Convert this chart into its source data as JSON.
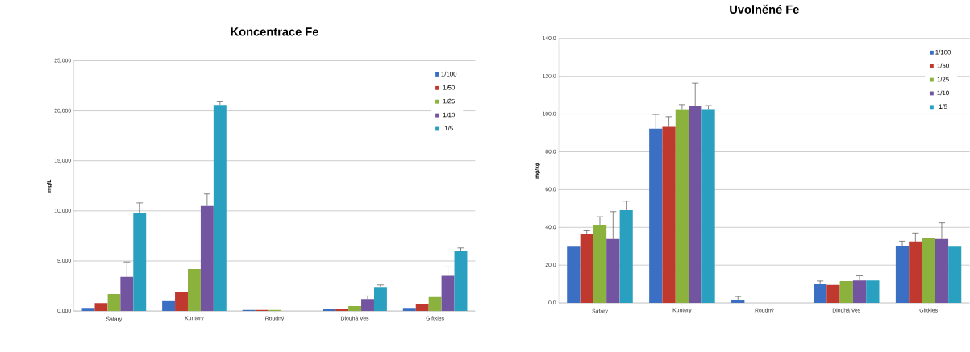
{
  "chart_data": [
    {
      "type": "bar",
      "title": "Koncentrace Fe",
      "ylabel": "mg/L",
      "categories": [
        "Šafary",
        "Kuntery",
        "Roudný",
        "Dlouhá Ves",
        "Giftkies"
      ],
      "series": [
        {
          "name": "1/100",
          "color": "#3a6fc4",
          "values": [
            0.3,
            1.0,
            0.1,
            0.2,
            0.3
          ]
        },
        {
          "name": "1/50",
          "color": "#c0392f",
          "values": [
            0.8,
            1.9,
            0.1,
            0.2,
            0.7
          ]
        },
        {
          "name": "1/25",
          "color": "#8ab23c",
          "values": [
            1.7,
            4.2,
            0.1,
            0.5,
            1.4
          ],
          "errors": [
            [
              1.7,
              1.9
            ],
            null,
            null,
            null,
            null
          ]
        },
        {
          "name": "1/10",
          "color": "#7354a0",
          "values": [
            3.4,
            10.5,
            0,
            1.2,
            3.5
          ],
          "errors": [
            [
              3.4,
              4.9
            ],
            [
              10.5,
              11.7
            ],
            null,
            [
              1.2,
              1.5
            ],
            [
              3.5,
              4.4
            ]
          ]
        },
        {
          "name": "1/5",
          "color": "#2aa0c0",
          "values": [
            9.8,
            20.6,
            0,
            2.4,
            6.0
          ],
          "errors": [
            [
              9.8,
              10.8
            ],
            [
              20.6,
              20.9
            ],
            null,
            [
              2.4,
              2.6
            ],
            [
              6.0,
              6.3
            ]
          ]
        }
      ],
      "ylim": [
        0,
        25
      ],
      "yticks": [
        {
          "value": 0,
          "label": "0,000"
        },
        {
          "value": 5,
          "label": "5,000"
        },
        {
          "value": 10,
          "label": "10,000"
        },
        {
          "value": 15,
          "label": "15,000"
        },
        {
          "value": 20,
          "label": "20,000"
        },
        {
          "value": 25,
          "label": "25,000"
        }
      ],
      "grid": "y",
      "legend": "top right"
    },
    {
      "type": "bar",
      "title": "Uvolněné Fe",
      "ylabel": "mg/kg",
      "categories": [
        "Šafary",
        "Kuntery",
        "Roudný",
        "Dlouhá Ves",
        "Giftkies"
      ],
      "series": [
        {
          "name": "1/100",
          "color": "#3a6fc4",
          "values": [
            29.8,
            92.3,
            1.5,
            10.0,
            30.1
          ],
          "errors": [
            null,
            [
              92.3,
              99.8
            ],
            [
              1.5,
              3.4
            ],
            [
              10.0,
              11.6
            ],
            [
              30.1,
              32.7
            ]
          ]
        },
        {
          "name": "1/50",
          "color": "#c0392f",
          "values": [
            36.7,
            93.2,
            null,
            9.5,
            32.5
          ],
          "errors": [
            [
              36.7,
              38.2
            ],
            [
              93.2,
              98.6
            ],
            null,
            null,
            [
              32.5,
              37.0
            ]
          ]
        },
        {
          "name": "1/25",
          "color": "#8ab23c",
          "values": [
            41.4,
            102.6,
            null,
            11.6,
            34.6
          ],
          "errors": [
            [
              41.4,
              45.6
            ],
            [
              102.6,
              105.0
            ],
            null,
            null,
            null
          ]
        },
        {
          "name": "1/10",
          "color": "#7354a0",
          "values": [
            33.8,
            104.5,
            null,
            11.9,
            33.8
          ],
          "errors": [
            [
              33.8,
              48.3
            ],
            [
              104.5,
              116.4
            ],
            null,
            [
              11.9,
              14.3
            ],
            [
              33.8,
              42.4
            ]
          ]
        },
        {
          "name": "1/5",
          "color": "#2aa0c0",
          "values": [
            49.1,
            102.7,
            null,
            11.9,
            29.8
          ],
          "errors": [
            [
              49.1,
              53.9
            ],
            [
              102.7,
              104.5
            ],
            null,
            null,
            null
          ]
        }
      ],
      "ylim": [
        0,
        140
      ],
      "yticks": [
        {
          "value": 0,
          "label": "0,0"
        },
        {
          "value": 20,
          "label": "20,0"
        },
        {
          "value": 40,
          "label": "40,0"
        },
        {
          "value": 60,
          "label": "60,0"
        },
        {
          "value": 80,
          "label": "80,0"
        },
        {
          "value": 100,
          "label": "100,0"
        },
        {
          "value": 120,
          "label": "120,0"
        },
        {
          "value": 140,
          "label": "140,0"
        }
      ],
      "grid": "y",
      "legend": "top right"
    }
  ]
}
